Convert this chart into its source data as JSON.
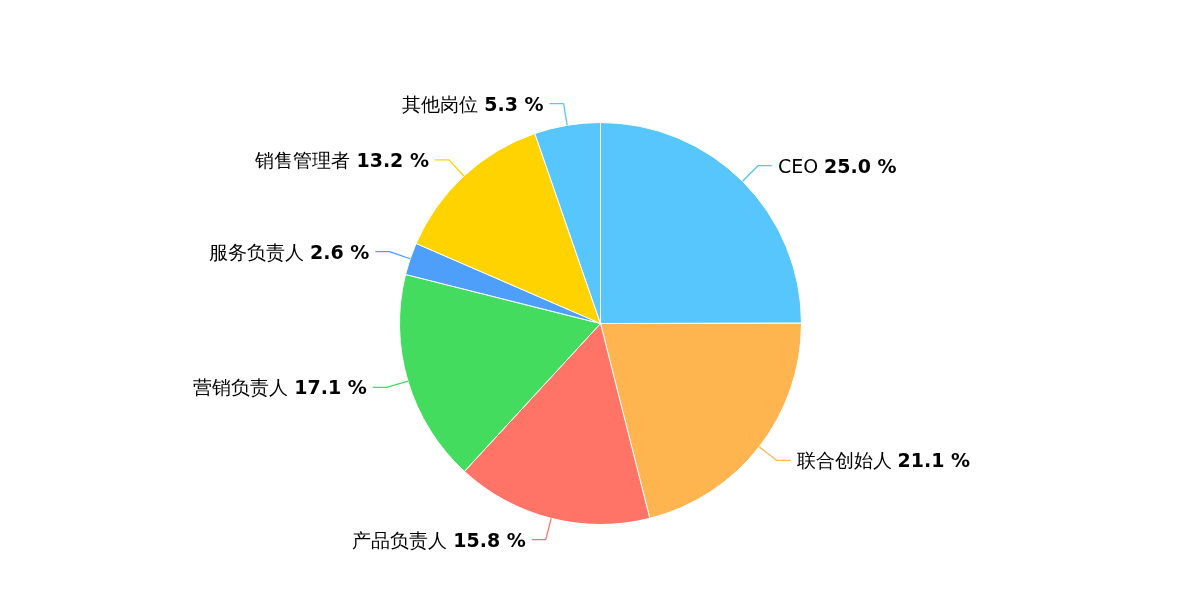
{
  "chart_data": {
    "type": "pie",
    "categories": [
      "CEO",
      "联合创始人",
      "产品负责人",
      "营销负责人",
      "服务负责人",
      "销售管理者",
      "其他岗位"
    ],
    "values": [
      25.0,
      21.1,
      15.8,
      17.1,
      2.6,
      13.2,
      5.3
    ],
    "value_labels": [
      "25.0 %",
      "21.1 %",
      "15.8 %",
      "17.1 %",
      "2.6 %",
      "13.2 %",
      "5.3 %"
    ],
    "colors": [
      "#56c6fc",
      "#ffb54f",
      "#ff7466",
      "#44dc5f",
      "#4d9ffa",
      "#ffd300",
      "#56c6fc"
    ]
  }
}
